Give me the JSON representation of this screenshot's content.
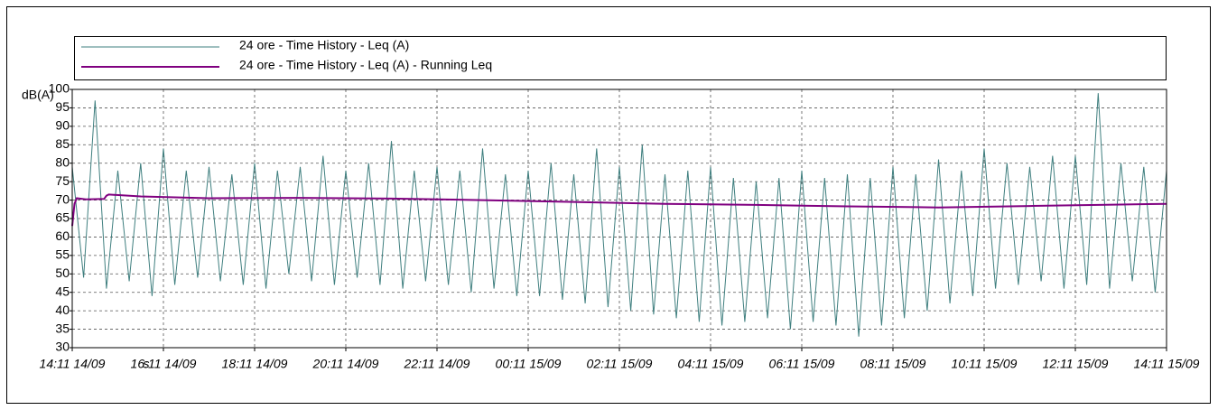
{
  "chart_data": {
    "type": "line",
    "y_label": "dB(A)",
    "x_label": "s",
    "xlim": [
      0,
      24
    ],
    "xticks": [
      {
        "value": 0,
        "label": "14:11 14/09"
      },
      {
        "value": 2,
        "label": "16:11 14/09"
      },
      {
        "value": 4,
        "label": "18:11 14/09"
      },
      {
        "value": 6,
        "label": "20:11 14/09"
      },
      {
        "value": 8,
        "label": "22:11 14/09"
      },
      {
        "value": 10,
        "label": "00:11 15/09"
      },
      {
        "value": 12,
        "label": "02:11 15/09"
      },
      {
        "value": 14,
        "label": "04:11 15/09"
      },
      {
        "value": 16,
        "label": "06:11 15/09"
      },
      {
        "value": 18,
        "label": "08:11 15/09"
      },
      {
        "value": 20,
        "label": "10:11 15/09"
      },
      {
        "value": 22,
        "label": "12:11 15/09"
      },
      {
        "value": 24,
        "label": "14:11 15/09"
      }
    ],
    "ylim": [
      30,
      100
    ],
    "yticks": [
      30,
      35,
      40,
      45,
      50,
      55,
      60,
      65,
      70,
      75,
      80,
      85,
      90,
      95,
      100
    ],
    "grid": true,
    "series": [
      {
        "name": "24 ore - Time History - Leq (A)",
        "color": "#3f7f7f",
        "x": [
          0,
          0.25,
          0.5,
          0.75,
          1,
          1.25,
          1.5,
          1.75,
          2,
          2.25,
          2.5,
          2.75,
          3,
          3.25,
          3.5,
          3.75,
          4,
          4.25,
          4.5,
          4.75,
          5,
          5.25,
          5.5,
          5.75,
          6,
          6.25,
          6.5,
          6.75,
          7,
          7.25,
          7.5,
          7.75,
          8,
          8.25,
          8.5,
          8.75,
          9,
          9.25,
          9.5,
          9.75,
          10,
          10.25,
          10.5,
          10.75,
          11,
          11.25,
          11.5,
          11.75,
          12,
          12.25,
          12.5,
          12.75,
          13,
          13.25,
          13.5,
          13.75,
          14,
          14.25,
          14.5,
          14.75,
          15,
          15.25,
          15.5,
          15.75,
          16,
          16.25,
          16.5,
          16.75,
          17,
          17.25,
          17.5,
          17.75,
          18,
          18.25,
          18.5,
          18.75,
          19,
          19.25,
          19.5,
          19.75,
          20,
          20.25,
          20.5,
          20.75,
          21,
          21.25,
          21.5,
          21.75,
          22,
          22.25,
          22.5,
          22.75,
          23,
          23.25,
          23.5,
          23.75,
          24
        ],
        "values": [
          79,
          49,
          97,
          46,
          78,
          48,
          80,
          44,
          84,
          47,
          78,
          49,
          79,
          48,
          77,
          47,
          80,
          46,
          78,
          50,
          79,
          48,
          82,
          47,
          78,
          49,
          80,
          47,
          86,
          46,
          78,
          48,
          79,
          47,
          78,
          45,
          84,
          46,
          77,
          44,
          78,
          44,
          80,
          43,
          77,
          42,
          84,
          41,
          79,
          40,
          85,
          39,
          77,
          38,
          78,
          37,
          79,
          36,
          76,
          37,
          75,
          38,
          76,
          35,
          78,
          37,
          76,
          36,
          77,
          33,
          76,
          36,
          79,
          38,
          77,
          40,
          81,
          42,
          78,
          44,
          84,
          46,
          80,
          47,
          79,
          48,
          82,
          46,
          82,
          47,
          99,
          46,
          80,
          48,
          79,
          45,
          78
        ]
      },
      {
        "name": "24 ore - Time History - Leq (A) - Running Leq",
        "color": "#800080",
        "x": [
          0,
          0.05,
          0.1,
          0.3,
          0.7,
          0.75,
          0.8,
          1.5,
          3,
          5,
          7,
          9,
          11,
          13,
          15,
          17,
          19,
          21,
          23,
          24
        ],
        "values": [
          63,
          69,
          70.5,
          70.2,
          70.3,
          71.2,
          71.5,
          71,
          70.5,
          70.6,
          70.4,
          70,
          69.5,
          69,
          68.7,
          68.3,
          68,
          68.4,
          68.8,
          69
        ]
      }
    ]
  }
}
